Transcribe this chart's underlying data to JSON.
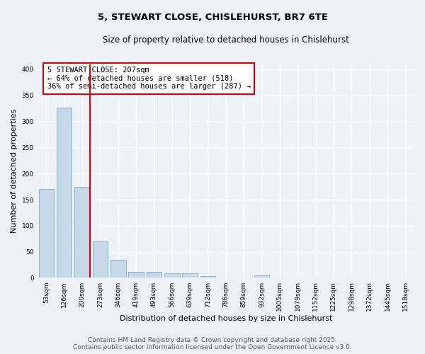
{
  "title_line1": "5, STEWART CLOSE, CHISLEHURST, BR7 6TE",
  "title_line2": "Size of property relative to detached houses in Chislehurst",
  "xlabel": "Distribution of detached houses by size in Chislehurst",
  "ylabel": "Number of detached properties",
  "categories": [
    "53sqm",
    "126sqm",
    "200sqm",
    "273sqm",
    "346sqm",
    "419sqm",
    "493sqm",
    "566sqm",
    "639sqm",
    "712sqm",
    "786sqm",
    "859sqm",
    "932sqm",
    "1005sqm",
    "1079sqm",
    "1152sqm",
    "1225sqm",
    "1298sqm",
    "1372sqm",
    "1445sqm",
    "1518sqm"
  ],
  "values": [
    170,
    327,
    175,
    70,
    35,
    12,
    12,
    9,
    9,
    3,
    0,
    0,
    5,
    0,
    0,
    0,
    0,
    0,
    0,
    0,
    0
  ],
  "bar_color": "#c8d8e8",
  "bar_edge_color": "#7aabcc",
  "highlight_index": 2,
  "vline_color": "#cc0000",
  "annotation_text": "5 STEWART CLOSE: 207sqm\n← 64% of detached houses are smaller (518)\n36% of semi-detached houses are larger (287) →",
  "annotation_box_color": "#ffffff",
  "annotation_box_edge": "#cc0000",
  "background_color": "#eef2f7",
  "grid_color": "#ffffff",
  "ylim": [
    0,
    410
  ],
  "yticks": [
    0,
    50,
    100,
    150,
    200,
    250,
    300,
    350,
    400
  ],
  "footer_line1": "Contains HM Land Registry data © Crown copyright and database right 2025.",
  "footer_line2": "Contains public sector information licensed under the Open Government Licence v3.0.",
  "title_fontsize": 9.5,
  "subtitle_fontsize": 8.5,
  "axis_label_fontsize": 8,
  "tick_fontsize": 6.5,
  "annotation_fontsize": 7.5,
  "footer_fontsize": 6.5
}
